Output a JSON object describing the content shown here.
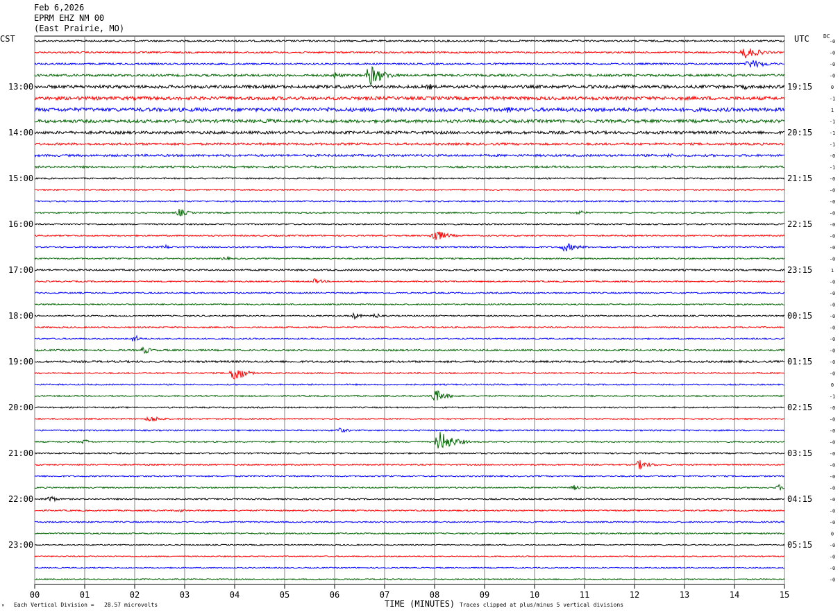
{
  "header": {
    "date": "Feb 6,2026",
    "station": "EPRM EHZ NM 00",
    "location": "(East Prairie, MO)"
  },
  "left_zone_label": "CST",
  "right_zone_label": "UTC",
  "dc_label": "DC",
  "footer": {
    "left_mark": "ᴹ",
    "division_note": "Each Vertical Division =   28.57 microvolts",
    "xlabel": "TIME (MINUTES)",
    "clip_note": "Traces clipped at plus/minus 5 vertical divisions"
  },
  "chart_data": {
    "type": "line",
    "title": "EPRM EHZ NM 00",
    "xlabel": "TIME (MINUTES)",
    "xlim": [
      0,
      15
    ],
    "x_ticks": [
      "00",
      "01",
      "02",
      "03",
      "04",
      "05",
      "06",
      "07",
      "08",
      "09",
      "10",
      "11",
      "12",
      "13",
      "14",
      "15"
    ],
    "trace_count": 48,
    "trace_colors": [
      "#000000",
      "#ff0000",
      "#0000ff",
      "#006400"
    ],
    "left_hour_labels": [
      {
        "trace": 4,
        "label": "13:00"
      },
      {
        "trace": 8,
        "label": "14:00"
      },
      {
        "trace": 12,
        "label": "15:00"
      },
      {
        "trace": 16,
        "label": "16:00"
      },
      {
        "trace": 20,
        "label": "17:00"
      },
      {
        "trace": 24,
        "label": "18:00"
      },
      {
        "trace": 28,
        "label": "19:00"
      },
      {
        "trace": 32,
        "label": "20:00"
      },
      {
        "trace": 36,
        "label": "21:00"
      },
      {
        "trace": 40,
        "label": "22:00"
      },
      {
        "trace": 44,
        "label": "23:00"
      }
    ],
    "right_hour_labels": [
      {
        "trace": 4,
        "label": "19:15"
      },
      {
        "trace": 8,
        "label": "20:15"
      },
      {
        "trace": 12,
        "label": "21:15"
      },
      {
        "trace": 16,
        "label": "22:15"
      },
      {
        "trace": 20,
        "label": "23:15"
      },
      {
        "trace": 24,
        "label": "00:15"
      },
      {
        "trace": 28,
        "label": "01:15"
      },
      {
        "trace": 32,
        "label": "02:15"
      },
      {
        "trace": 36,
        "label": "03:15"
      },
      {
        "trace": 40,
        "label": "04:15"
      },
      {
        "trace": 44,
        "label": "05:15"
      }
    ],
    "dc_offsets": [
      "-0",
      "-0",
      "-0",
      "-0",
      "0",
      "-1",
      "1",
      "-1",
      "-1",
      "-1",
      "-0",
      "-1",
      "-0",
      "-0",
      "-0",
      "-0",
      "-0",
      "-0",
      "-0",
      "-0",
      "1",
      "-0",
      "-0",
      "-0",
      "-0",
      "-0",
      "-0",
      "-0",
      "-0",
      "-0",
      "0",
      "-1",
      "-0",
      "-0",
      "-0",
      "-0",
      "-0",
      "-0",
      "-0",
      "-0",
      "-0",
      "-0",
      "-0",
      "0",
      "-0",
      "-0",
      "-0",
      "-0"
    ],
    "trace_noise": [
      1.2,
      1.2,
      1.2,
      1.6,
      2.2,
      2.4,
      2.6,
      2.2,
      2.0,
      1.6,
      1.6,
      1.4,
      1.0,
      1.0,
      1.0,
      1.0,
      1.0,
      1.0,
      1.0,
      1.0,
      1.2,
      1.0,
      1.0,
      1.0,
      1.0,
      1.0,
      1.0,
      1.2,
      1.4,
      1.0,
      1.0,
      1.0,
      1.0,
      1.0,
      1.0,
      1.0,
      1.0,
      1.0,
      1.0,
      1.0,
      1.0,
      1.0,
      1.0,
      1.0,
      0.8,
      0.8,
      0.8,
      0.8
    ],
    "events": [
      {
        "trace": 1,
        "minute": 14.2,
        "amp": 9,
        "dur": 0.7
      },
      {
        "trace": 2,
        "minute": 14.3,
        "amp": 7,
        "dur": 0.8
      },
      {
        "trace": 3,
        "minute": 6.7,
        "amp": 16,
        "dur": 0.6
      },
      {
        "trace": 3,
        "minute": 6.0,
        "amp": 5,
        "dur": 0.4
      },
      {
        "trace": 4,
        "minute": 7.9,
        "amp": 5,
        "dur": 0.2
      },
      {
        "trace": 4,
        "minute": 14.2,
        "amp": 4,
        "dur": 0.3
      },
      {
        "trace": 6,
        "minute": 5.9,
        "amp": 5,
        "dur": 0.3
      },
      {
        "trace": 6,
        "minute": 9.5,
        "amp": 7,
        "dur": 0.15
      },
      {
        "trace": 7,
        "minute": 4.7,
        "amp": 5,
        "dur": 0.2
      },
      {
        "trace": 10,
        "minute": 12.7,
        "amp": 4,
        "dur": 0.2
      },
      {
        "trace": 15,
        "minute": 2.9,
        "amp": 6,
        "dur": 0.4
      },
      {
        "trace": 15,
        "minute": 10.9,
        "amp": 4,
        "dur": 0.3
      },
      {
        "trace": 17,
        "minute": 8.0,
        "amp": 10,
        "dur": 0.5
      },
      {
        "trace": 18,
        "minute": 2.6,
        "amp": 4,
        "dur": 0.3
      },
      {
        "trace": 18,
        "minute": 10.6,
        "amp": 7,
        "dur": 0.6
      },
      {
        "trace": 19,
        "minute": 3.8,
        "amp": 3,
        "dur": 0.4
      },
      {
        "trace": 21,
        "minute": 5.6,
        "amp": 4,
        "dur": 0.5
      },
      {
        "trace": 24,
        "minute": 6.4,
        "amp": 5,
        "dur": 0.3
      },
      {
        "trace": 24,
        "minute": 6.85,
        "amp": 6,
        "dur": 0.08
      },
      {
        "trace": 26,
        "minute": 2.0,
        "amp": 6,
        "dur": 0.25
      },
      {
        "trace": 27,
        "minute": 2.2,
        "amp": 6,
        "dur": 0.3
      },
      {
        "trace": 29,
        "minute": 4.0,
        "amp": 14,
        "dur": 0.4
      },
      {
        "trace": 31,
        "minute": 8.0,
        "amp": 10,
        "dur": 0.5
      },
      {
        "trace": 33,
        "minute": 2.3,
        "amp": 5,
        "dur": 0.6
      },
      {
        "trace": 34,
        "minute": 6.1,
        "amp": 4,
        "dur": 0.4
      },
      {
        "trace": 35,
        "minute": 8.1,
        "amp": 16,
        "dur": 0.6
      },
      {
        "trace": 35,
        "minute": 1.0,
        "amp": 4,
        "dur": 0.3
      },
      {
        "trace": 37,
        "minute": 12.1,
        "amp": 7,
        "dur": 0.5
      },
      {
        "trace": 39,
        "minute": 10.8,
        "amp": 4,
        "dur": 0.3
      },
      {
        "trace": 39,
        "minute": 14.9,
        "amp": 5,
        "dur": 0.2
      },
      {
        "trace": 40,
        "minute": 0.3,
        "amp": 6,
        "dur": 0.3
      },
      {
        "trace": 41,
        "minute": 2.9,
        "amp": 3,
        "dur": 0.3
      }
    ]
  }
}
